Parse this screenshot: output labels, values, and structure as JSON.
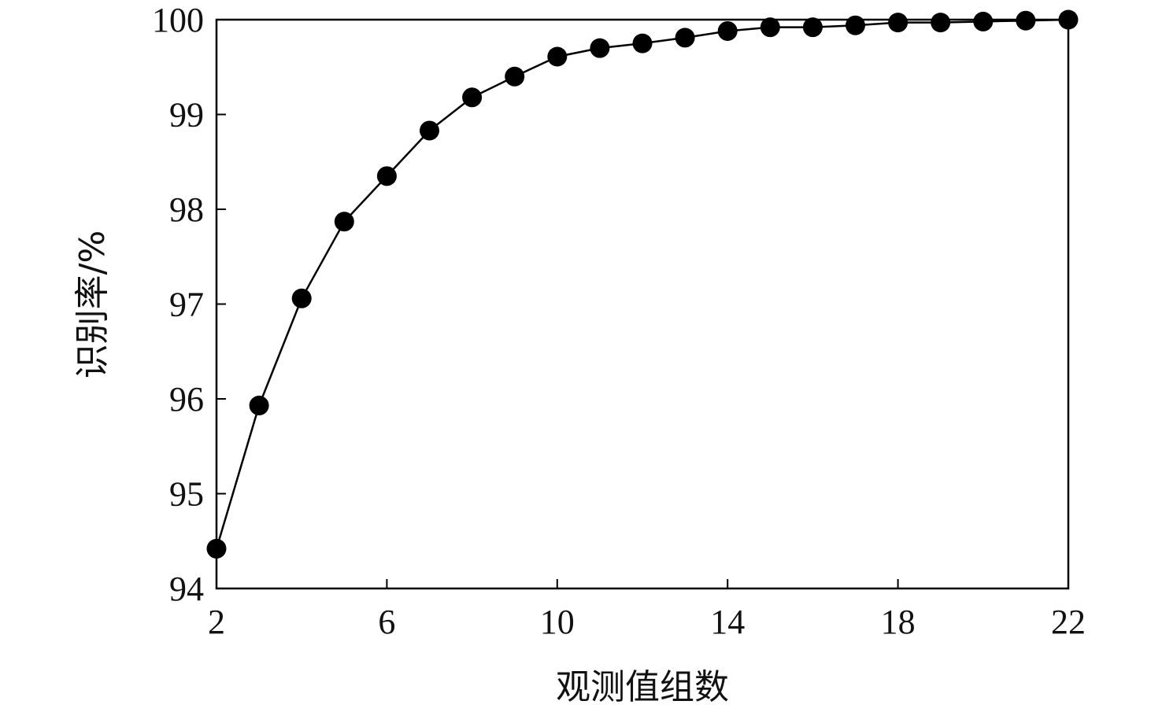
{
  "chart_data": {
    "type": "line",
    "title": "",
    "xlabel": "观测值组数",
    "ylabel": "识别率/%",
    "xlim": [
      2,
      22
    ],
    "ylim": [
      94,
      100
    ],
    "x_ticks": [
      2,
      6,
      10,
      14,
      18,
      22
    ],
    "y_ticks": [
      94,
      95,
      96,
      97,
      98,
      99,
      100
    ],
    "grid": false,
    "legend": "none",
    "marker": "filled-circle",
    "colors": {
      "line": "#000000",
      "marker": "#000000",
      "axis": "#000000"
    },
    "series": [
      {
        "x": [
          2,
          3,
          4,
          5,
          6,
          7,
          8,
          9,
          10,
          11,
          12,
          13,
          14,
          15,
          16,
          17,
          18,
          19,
          20,
          21,
          22
        ],
        "y": [
          94.42,
          95.93,
          97.06,
          97.87,
          98.35,
          98.83,
          99.18,
          99.4,
          99.61,
          99.7,
          99.75,
          99.81,
          99.88,
          99.92,
          99.92,
          99.94,
          99.97,
          99.97,
          99.98,
          99.99,
          100.0
        ]
      }
    ]
  }
}
